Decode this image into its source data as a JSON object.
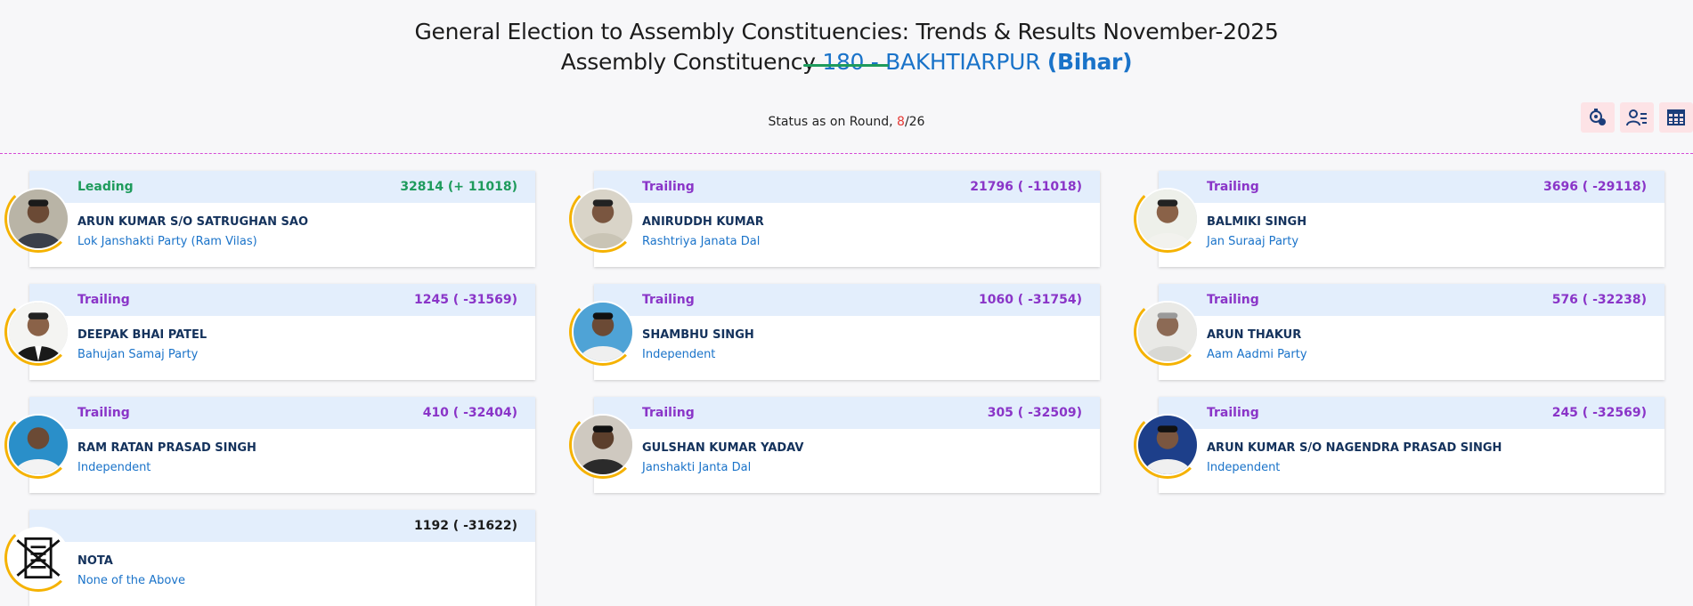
{
  "header": {
    "line1": "General Election to Assembly Constituencies: Trends & Results November-2025",
    "line2_prefix": "Assembly Constituency ",
    "constituency": "180 - BAKHTIARPUR",
    "state": "(Bihar)"
  },
  "status": {
    "prefix": "Status as on Round, ",
    "current_round": "8",
    "total_rounds": "/26"
  },
  "toolbar": {
    "icons": [
      "round-wise-icon",
      "candidate-list-icon",
      "table-view-icon"
    ]
  },
  "colors": {
    "leading": "#1e9b5c",
    "trailing": "#8a35c8",
    "name": "#14325c",
    "party": "#1a73c9",
    "accent_ring": "#f5b200"
  },
  "candidates": [
    {
      "status": "Leading",
      "votes": "32814 (+ 11018)",
      "name": "ARUN KUMAR S/O SATRUGHAN SAO",
      "party": "Lok Janshakti Party (Ram Vilas)"
    },
    {
      "status": "Trailing",
      "votes": "21796 ( -11018)",
      "name": "ANIRUDDH KUMAR",
      "party": "Rashtriya Janata Dal"
    },
    {
      "status": "Trailing",
      "votes": "3696 ( -29118)",
      "name": "BALMIKI SINGH",
      "party": "Jan Suraaj Party"
    },
    {
      "status": "Trailing",
      "votes": "1245 ( -31569)",
      "name": "DEEPAK BHAI PATEL",
      "party": "Bahujan Samaj Party"
    },
    {
      "status": "Trailing",
      "votes": "1060 ( -31754)",
      "name": "SHAMBHU SINGH",
      "party": "Independent"
    },
    {
      "status": "Trailing",
      "votes": "576 ( -32238)",
      "name": "ARUN THAKUR",
      "party": "Aam Aadmi Party"
    },
    {
      "status": "Trailing",
      "votes": "410 ( -32404)",
      "name": "RAM RATAN PRASAD SINGH",
      "party": "Independent"
    },
    {
      "status": "Trailing",
      "votes": "305 ( -32509)",
      "name": "GULSHAN KUMAR YADAV",
      "party": "Janshakti Janta Dal"
    },
    {
      "status": "Trailing",
      "votes": "245 ( -32569)",
      "name": "ARUN KUMAR S/O NAGENDRA PRASAD SINGH",
      "party": "Independent"
    },
    {
      "status": "",
      "votes": "1192 ( -31622)",
      "name": "NOTA",
      "party": "None of the Above"
    }
  ]
}
